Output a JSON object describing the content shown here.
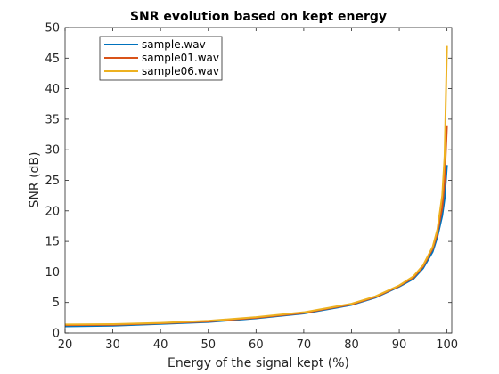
{
  "chart_data": {
    "type": "line",
    "title": "SNR evolution based on kept energy",
    "xlabel": "Energy of the signal kept (%)",
    "ylabel": "SNR (dB)",
    "xlim": [
      20,
      101
    ],
    "ylim": [
      0,
      50
    ],
    "xticks": [
      20,
      30,
      40,
      50,
      60,
      70,
      80,
      90,
      100
    ],
    "yticks": [
      0,
      5,
      10,
      15,
      20,
      25,
      30,
      35,
      40,
      45,
      50
    ],
    "grid": false,
    "legend_position": "top-left",
    "series": [
      {
        "name": "sample.wav",
        "color": "#0072BD",
        "x": [
          20,
          30,
          40,
          50,
          60,
          70,
          80,
          85,
          90,
          93,
          95,
          97,
          98,
          99,
          99.5,
          100
        ],
        "y": [
          1.1,
          1.2,
          1.5,
          1.8,
          2.4,
          3.2,
          4.6,
          5.8,
          7.6,
          8.9,
          10.6,
          13.3,
          15.8,
          19.2,
          22.0,
          27.5
        ]
      },
      {
        "name": "sample01.wav",
        "color": "#D95319",
        "x": [
          20,
          30,
          40,
          50,
          60,
          70,
          80,
          85,
          90,
          93,
          95,
          97,
          98,
          99,
          99.5,
          100
        ],
        "y": [
          1.3,
          1.35,
          1.6,
          1.9,
          2.5,
          3.3,
          4.7,
          5.9,
          7.7,
          9.1,
          10.9,
          13.8,
          16.4,
          20.5,
          25.0,
          34.0
        ]
      },
      {
        "name": "sample06.wav",
        "color": "#EDB120",
        "x": [
          20,
          30,
          40,
          50,
          60,
          70,
          80,
          85,
          90,
          93,
          95,
          97,
          98,
          99,
          99.5,
          100
        ],
        "y": [
          1.4,
          1.45,
          1.65,
          2.0,
          2.6,
          3.4,
          4.8,
          6.0,
          7.8,
          9.3,
          11.1,
          14.1,
          17.0,
          22.5,
          29.0,
          47.0
        ]
      }
    ]
  }
}
